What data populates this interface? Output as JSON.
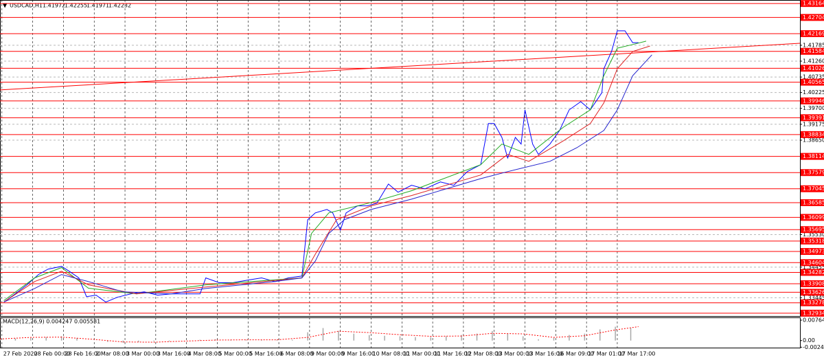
{
  "header": {
    "symbol": "USDCAD,H1",
    "ohlc": [
      1.41972,
      1.42255,
      1.41971,
      1.42232
    ]
  },
  "chart_data": [
    {
      "type": "line",
      "xlim": [
        0,
        416
      ],
      "ylim": [
        1.3284,
        1.4328
      ],
      "xticks": [
        {
          "value": 1,
          "label": "27 Feb 2020"
        },
        {
          "value": 17,
          "label": "28 Feb 00:00"
        },
        {
          "value": 33,
          "label": "28 Feb 16:00"
        },
        {
          "value": 49,
          "label": "2 Mar 08:00"
        },
        {
          "value": 65,
          "label": "3 Mar 00:00"
        },
        {
          "value": 81,
          "label": "3 Mar 16:00"
        },
        {
          "value": 97,
          "label": "4 Mar 08:00"
        },
        {
          "value": 113,
          "label": "5 Mar 00:00"
        },
        {
          "value": 129,
          "label": "5 Mar 16:00"
        },
        {
          "value": 145,
          "label": "6 Mar 08:00"
        },
        {
          "value": 161,
          "label": "9 Mar 00:00"
        },
        {
          "value": 177,
          "label": "9 Mar 16:00"
        },
        {
          "value": 193,
          "label": "10 Mar 08:00"
        },
        {
          "value": 209,
          "label": "11 Mar 00:00"
        },
        {
          "value": 225,
          "label": "11 Mar 16:00"
        },
        {
          "value": 241,
          "label": "12 Mar 08:00"
        },
        {
          "value": 257,
          "label": "13 Mar 00:00"
        },
        {
          "value": 273,
          "label": "13 Mar 16:00"
        },
        {
          "value": 289,
          "label": "16 Mar 09:00"
        },
        {
          "value": 305,
          "label": "17 Mar 01:00"
        },
        {
          "value": 321,
          "label": "17 Mar 17:00"
        }
      ],
      "yticks": [
        1.41785,
        {
          "value": 1.4126,
          "label": "1.41260"
        },
        1.40735,
        1.40225,
        {
          "value": 1.397,
          "label": "1.39700"
        },
        1.39175,
        {
          "value": 1.3865,
          "label": "1.38650"
        },
        {
          "value": 1.3553,
          "label": "1.35530"
        },
        1.34455,
        1.33445
      ],
      "grid": true,
      "levels": {
        "color": "#ff0000",
        "values": [
          1.43164,
          1.42704,
          1.42169,
          1.41584,
          1.41026,
          1.40565,
          1.39946,
          1.39391,
          1.38834,
          1.38114,
          1.37579,
          1.37045,
          1.36585,
          1.36099,
          1.35695,
          1.35318,
          1.34973,
          1.34604,
          1.34282,
          1.33908,
          1.33626,
          1.33278,
          1.32934
        ]
      },
      "trendline": {
        "color": "#ff0000",
        "x": [
          0,
          416
        ],
        "values": [
          1.4031,
          1.4185
        ]
      },
      "series": [
        {
          "color": "#0000ff",
          "x": [
            2,
            7,
            14,
            20,
            25,
            32,
            36,
            41,
            45,
            50,
            55,
            61,
            68,
            75,
            82,
            89,
            96,
            104,
            107,
            114,
            121,
            129,
            136,
            143,
            150,
            157,
            160,
            164,
            170,
            173,
            177,
            180,
            186,
            191,
            196,
            202,
            207,
            214,
            221,
            229,
            236,
            243,
            250,
            254,
            257,
            261,
            264,
            268,
            271,
            273,
            277,
            280,
            286,
            291,
            296,
            302,
            307,
            313,
            314,
            318,
            321,
            325,
            329,
            332
          ],
          "values": [
            1.333,
            1.3353,
            1.3387,
            1.3421,
            1.3439,
            1.3448,
            1.3432,
            1.341,
            1.3348,
            1.3353,
            1.333,
            1.3346,
            1.3357,
            1.3364,
            1.3353,
            1.3357,
            1.3357,
            1.3357,
            1.341,
            1.3394,
            1.3394,
            1.3403,
            1.341,
            1.3398,
            1.341,
            1.3416,
            1.3602,
            1.3625,
            1.3636,
            1.3625,
            1.3568,
            1.3625,
            1.3648,
            1.3648,
            1.3657,
            1.372,
            1.3693,
            1.3716,
            1.3704,
            1.3727,
            1.3716,
            1.3761,
            1.3784,
            1.392,
            1.392,
            1.3874,
            1.3806,
            1.3874,
            1.3852,
            1.3965,
            1.3852,
            1.3818,
            1.3852,
            1.3897,
            1.3965,
            1.3992,
            1.3965,
            1.4022,
            1.4101,
            1.4158,
            1.4226,
            1.4226,
            1.4187,
            1.4187
          ]
        },
        {
          "color": "#22aa22",
          "x": [
            2,
            18,
            32,
            46,
            71,
            107,
            157,
            162,
            171,
            193,
            214,
            250,
            261,
            275,
            293,
            307,
            314,
            321,
            329,
            336
          ],
          "values": [
            1.3335,
            1.341,
            1.3444,
            1.3376,
            1.3357,
            1.3387,
            1.341,
            1.3557,
            1.3625,
            1.3659,
            1.3698,
            1.3784,
            1.3852,
            1.3818,
            1.3908,
            1.3965,
            1.4078,
            1.4169,
            1.4181,
            1.4192
          ]
        },
        {
          "color": "#dd2222",
          "x": [
            2,
            18,
            32,
            46,
            71,
            107,
            157,
            164,
            175,
            193,
            214,
            250,
            264,
            275,
            293,
            307,
            314,
            321,
            329,
            338
          ],
          "values": [
            1.333,
            1.3398,
            1.3432,
            1.3387,
            1.3357,
            1.338,
            1.341,
            1.3489,
            1.3602,
            1.3648,
            1.3682,
            1.375,
            1.3818,
            1.3795,
            1.3863,
            1.392,
            1.3988,
            1.4101,
            1.4158,
            1.4176
          ]
        },
        {
          "color": "#2222cc",
          "x": [
            2,
            18,
            32,
            46,
            64,
            89,
            107,
            143,
            157,
            164,
            171,
            179,
            193,
            214,
            232,
            250,
            264,
            271,
            286,
            300,
            314,
            321,
            329,
            339
          ],
          "values": [
            1.333,
            1.3375,
            1.3421,
            1.3398,
            1.3364,
            1.3357,
            1.3375,
            1.3398,
            1.341,
            1.3466,
            1.3557,
            1.3602,
            1.3636,
            1.367,
            1.3704,
            1.3738,
            1.3761,
            1.3772,
            1.3795,
            1.384,
            1.3897,
            1.3965,
            1.4078,
            1.4147
          ]
        }
      ]
    },
    {
      "type": "macd",
      "title": "MACD(12,26,9) 0.004247 0.005581",
      "xlim": [
        0,
        416
      ],
      "ylim": [
        -0.0029,
        0.00868
      ],
      "yticks": [
        0.007646,
        {
          "value": 0,
          "label": "0.00"
        },
        -0.002476
      ],
      "series": [
        {
          "type": "bar",
          "color": "#a8a8a8",
          "x": [
            0,
            8,
            16,
            24,
            32,
            40,
            48,
            56,
            64,
            72,
            80,
            88,
            96,
            104,
            112,
            120,
            128,
            136,
            144,
            152,
            160,
            168,
            176,
            184,
            192,
            200,
            208,
            216,
            224,
            232,
            240,
            248,
            256,
            264,
            272,
            280,
            288,
            296,
            304,
            312,
            320,
            328
          ],
          "values": [
            0.0005,
            0.0008,
            0.001,
            0.0013,
            0.0016,
            0.001,
            0,
            -0.0005,
            -0.0008,
            -0.0005,
            -0.0003,
            -0.0003,
            0,
            0.0003,
            0.0005,
            0.0003,
            0.0003,
            0.0003,
            0.0003,
            0.0003,
            0.0031,
            0.0047,
            0.0036,
            0.0026,
            0.0021,
            0.0018,
            0.0016,
            0.0013,
            0.0013,
            0.0016,
            0.0021,
            0.0026,
            0.0036,
            0.0026,
            0.0016,
            0.0005,
            0.001,
            0.0021,
            0.0026,
            0.0042,
            0.0052,
            0.0047
          ]
        },
        {
          "type": "line",
          "color": "#ff0000",
          "x": [
            0,
            16,
            32,
            48,
            64,
            80,
            96,
            112,
            128,
            144,
            160,
            176,
            192,
            208,
            224,
            240,
            256,
            272,
            288,
            304,
            320,
            332
          ],
          "values": [
            0.0006,
            0.0012,
            0.0013,
            0.0005,
            -0.0005,
            -0.0006,
            -0.0002,
            0.0002,
            0.0003,
            0.0003,
            0.0012,
            0.0035,
            0.003,
            0.0022,
            0.0016,
            0.0017,
            0.0027,
            0.0025,
            0.0012,
            0.0018,
            0.004,
            0.0052
          ]
        }
      ]
    }
  ]
}
